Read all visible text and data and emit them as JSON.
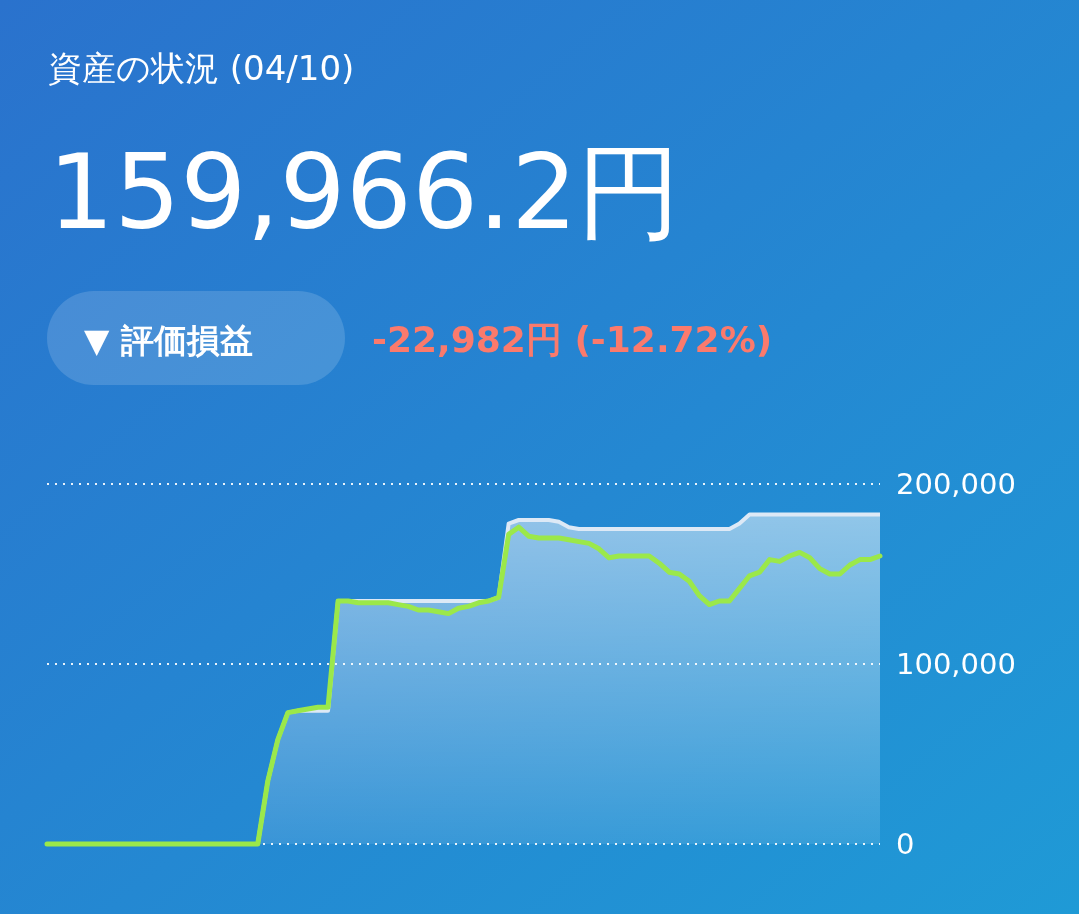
{
  "chart_data": {
    "type": "area",
    "title": "資産の状況 (04/10)",
    "subtitle": "159,966.2円",
    "annotations": [
      "▼ 評価損益",
      "-22,982円 (-12.72%)"
    ],
    "categories": [
      null,
      null,
      null,
      null,
      null,
      null,
      null,
      null,
      null,
      null,
      null,
      null,
      null,
      null,
      null,
      null,
      null,
      null,
      null,
      null,
      null,
      null,
      null,
      null,
      null,
      null,
      null,
      null,
      null,
      null,
      null,
      null,
      null,
      null,
      null,
      null,
      null,
      null,
      null,
      null,
      null,
      null,
      null,
      null,
      null,
      null,
      null,
      null,
      null,
      null,
      null,
      null,
      null,
      null,
      null,
      null,
      null,
      null,
      null,
      null,
      null,
      null,
      null,
      null,
      null,
      null,
      null,
      null,
      null,
      null,
      null,
      null,
      null,
      null,
      null,
      null,
      null,
      null,
      null,
      null,
      null,
      null,
      null,
      null
    ],
    "series": [
      {
        "color": "#dde9f6",
        "values": [
          0,
          0,
          0,
          0,
          0,
          0,
          0,
          0,
          0,
          0,
          0,
          0,
          0,
          0,
          0,
          0,
          0,
          0,
          0,
          0,
          0,
          0,
          35000,
          58000,
          73000,
          74000,
          74000,
          74000,
          74000,
          135000,
          135000,
          135000,
          135000,
          135000,
          135000,
          135000,
          135000,
          135000,
          135000,
          135000,
          135000,
          135000,
          135000,
          135000,
          135000,
          137000,
          178000,
          180000,
          180000,
          180000,
          180000,
          179000,
          176000,
          175000,
          175000,
          175000,
          175000,
          175000,
          175000,
          175000,
          175000,
          175000,
          175000,
          175000,
          175000,
          175000,
          175000,
          175000,
          175000,
          178000,
          183000,
          183000,
          183000,
          183000,
          183000,
          183000,
          183000,
          183000,
          183000,
          183000,
          183000,
          183000,
          183000,
          183000
        ]
      },
      {
        "type": "line",
        "color": "#9be84a",
        "values": [
          0,
          0,
          0,
          0,
          0,
          0,
          0,
          0,
          0,
          0,
          0,
          0,
          0,
          0,
          0,
          0,
          0,
          0,
          0,
          0,
          0,
          0,
          35000,
          58000,
          73000,
          74000,
          75000,
          76000,
          76000,
          135000,
          135000,
          134000,
          134000,
          134000,
          134000,
          133000,
          132000,
          130000,
          130000,
          129000,
          128000,
          131000,
          132000,
          134000,
          135000,
          137000,
          172000,
          176000,
          171000,
          170000,
          170000,
          170000,
          169000,
          168000,
          167000,
          164000,
          159000,
          160000,
          160000,
          160000,
          160000,
          156000,
          151000,
          150000,
          146000,
          138000,
          133000,
          135000,
          135000,
          142000,
          149000,
          151000,
          158000,
          157000,
          160000,
          162000,
          159000,
          153000,
          150000,
          150000,
          155000,
          158000,
          158000,
          160000
        ]
      }
    ],
    "ylim": [
      0,
      200000
    ],
    "yticks": [
      {
        "value": 0,
        "label": "0"
      },
      {
        "value": 100000,
        "label": "100,000"
      },
      {
        "value": 200000,
        "label": "200,000"
      }
    ],
    "grid": "y"
  }
}
